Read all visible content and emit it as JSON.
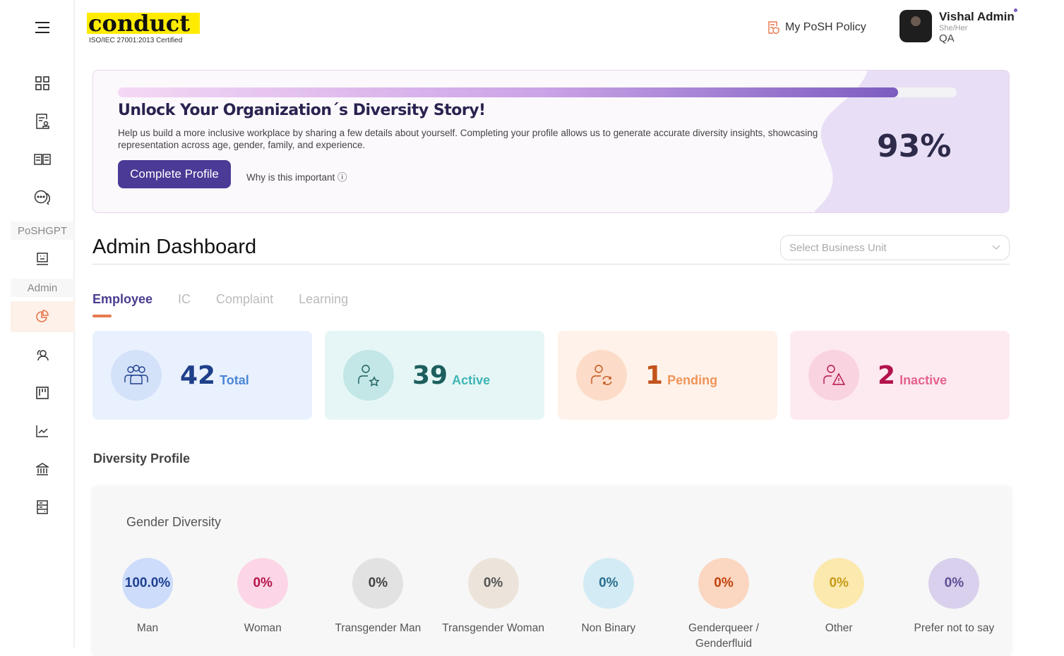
{
  "logo": {
    "word": "conduct",
    "sub": "ISO/IEC 27001:2013 Certified"
  },
  "sidebar": {
    "items": [
      {
        "icon": "dashboard-icon"
      },
      {
        "icon": "policy-document-icon"
      },
      {
        "icon": "book-icon"
      },
      {
        "icon": "chat-icon"
      },
      {
        "label": "PoSHGPT"
      },
      {
        "icon": "bot-icon"
      },
      {
        "label": "Admin"
      },
      {
        "icon": "pie-chart-icon",
        "active": true
      },
      {
        "icon": "users-icon"
      },
      {
        "icon": "board-icon"
      },
      {
        "icon": "line-chart-icon"
      },
      {
        "icon": "bank-icon"
      },
      {
        "icon": "server-icon"
      }
    ]
  },
  "header": {
    "policy_label": "My PoSH Policy",
    "user": {
      "name": "Vishal Admin",
      "pronouns": "She/Her",
      "role": "QA"
    }
  },
  "banner": {
    "title": "Unlock Your Organization´s Diversity Story!",
    "description": "Help us build a more inclusive workplace by sharing a few details about yourself. Completing your profile allows us to generate accurate diversity insights, showcasing representation across age, gender, family, and experience.",
    "button": "Complete Profile",
    "why": "Why is this important ⓘ",
    "percent_label": "93%",
    "progress": 93
  },
  "dashboard": {
    "title": "Admin Dashboard",
    "bu_placeholder": "Select Business Unit",
    "tabs": [
      "Employee",
      "IC",
      "Complaint",
      "Learning"
    ],
    "active_tab": "Employee"
  },
  "stats": [
    {
      "value": "42",
      "label": "Total",
      "bg": "#eaf1fe",
      "circle": "#d3e1f9",
      "num": "#1e3f8a",
      "lbl": "#4a86d8",
      "icon": "users-group-icon"
    },
    {
      "value": "39",
      "label": "Active",
      "bg": "#e6f6f6",
      "circle": "#c3e6e6",
      "num": "#1c5e5e",
      "lbl": "#3fb5b5",
      "icon": "user-star-icon"
    },
    {
      "value": "1",
      "label": "Pending",
      "bg": "#fff2ea",
      "circle": "#fcdcc8",
      "num": "#c2531c",
      "lbl": "#f0945a",
      "icon": "user-sync-icon"
    },
    {
      "value": "2",
      "label": "Inactive",
      "bg": "#fdeaf0",
      "circle": "#fad3e0",
      "num": "#b3134d",
      "lbl": "#e4628f",
      "icon": "user-warning-icon"
    }
  ],
  "diversity": {
    "section": "Diversity Profile",
    "card_title": "Gender Diversity",
    "items": [
      {
        "label": "Man",
        "value": "100.0%",
        "bg": "#cddcfb",
        "fg": "#1e4090"
      },
      {
        "label": "Woman",
        "value": "0%",
        "bg": "#fcd6e6",
        "fg": "#b5164a"
      },
      {
        "label": "Transgender Man",
        "value": "0%",
        "bg": "#e2e2e2",
        "fg": "#444444"
      },
      {
        "label": "Transgender Woman",
        "value": "0%",
        "bg": "#ece4da",
        "fg": "#555555"
      },
      {
        "label": "Non Binary",
        "value": "0%",
        "bg": "#d3ebf4",
        "fg": "#2a6f90"
      },
      {
        "label": "Genderqueer / Genderfluid",
        "value": "0%",
        "bg": "#fbd6c0",
        "fg": "#c2430c"
      },
      {
        "label": "Other",
        "value": "0%",
        "bg": "#fbe9ae",
        "fg": "#c89a18"
      },
      {
        "label": "Prefer not to say",
        "value": "0%",
        "bg": "#d8d0ec",
        "fg": "#5e4f96"
      }
    ]
  }
}
